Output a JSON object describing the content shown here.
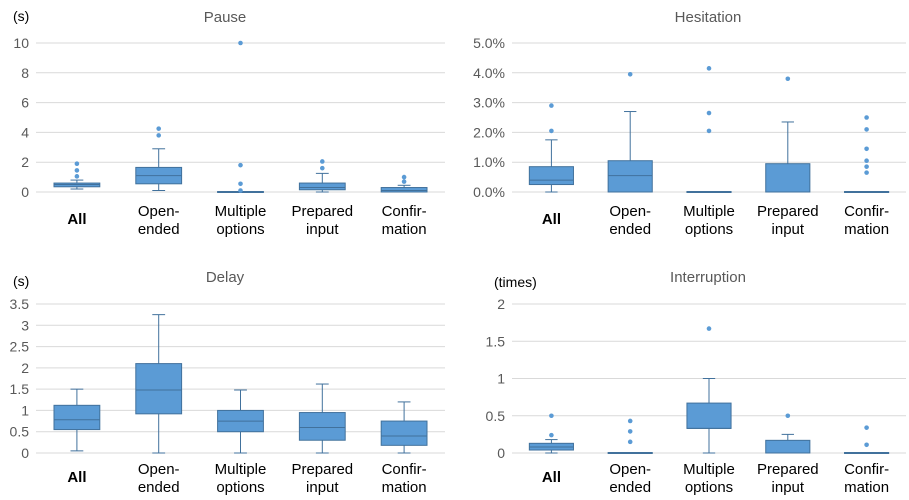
{
  "chart_data": [
    {
      "type": "box",
      "title": "Pause",
      "unit_label": "(s)",
      "ylim": [
        0,
        10
      ],
      "ticks": [
        0,
        2,
        4,
        6,
        8,
        10
      ],
      "tick_labels": [
        "0",
        "2",
        "4",
        "6",
        "8",
        "10"
      ],
      "grid": true,
      "categories": [
        {
          "lines": [
            "All"
          ],
          "bold": true
        },
        {
          "lines": [
            "Open-",
            "ended"
          ]
        },
        {
          "lines": [
            "Multiple",
            "options"
          ]
        },
        {
          "lines": [
            "Prepared",
            "input"
          ]
        },
        {
          "lines": [
            "Confir-",
            "mation"
          ]
        }
      ],
      "boxes": [
        {
          "min": 0.2,
          "q1": 0.35,
          "median": 0.5,
          "q3": 0.6,
          "max": 0.8,
          "outliers": [
            1.05,
            1.45,
            1.9
          ]
        },
        {
          "min": 0.1,
          "q1": 0.55,
          "median": 1.1,
          "q3": 1.65,
          "max": 2.9,
          "outliers": [
            3.8,
            4.25
          ]
        },
        {
          "min": 0.0,
          "q1": 0.0,
          "median": 0.0,
          "q3": 0.0,
          "max": 0.0,
          "outliers": [
            0.1,
            0.55,
            1.8,
            10.0
          ]
        },
        {
          "min": 0.0,
          "q1": 0.15,
          "median": 0.3,
          "q3": 0.6,
          "max": 1.25,
          "outliers": [
            1.6,
            2.05
          ]
        },
        {
          "min": 0.0,
          "q1": 0.0,
          "median": 0.1,
          "q3": 0.3,
          "max": 0.45,
          "outliers": [
            0.7,
            1.0
          ]
        }
      ]
    },
    {
      "type": "box",
      "title": "Hesitation",
      "unit_label": "",
      "ylim": [
        0,
        5
      ],
      "ticks": [
        0,
        1,
        2,
        3,
        4,
        5
      ],
      "tick_labels": [
        "0.0%",
        "1.0%",
        "2.0%",
        "3.0%",
        "4.0%",
        "5.0%"
      ],
      "grid": true,
      "categories": [
        {
          "lines": [
            "All"
          ],
          "bold": true
        },
        {
          "lines": [
            "Open-",
            "ended"
          ]
        },
        {
          "lines": [
            "Multiple",
            "options"
          ]
        },
        {
          "lines": [
            "Prepared",
            "input"
          ]
        },
        {
          "lines": [
            "Confir-",
            "mation"
          ]
        }
      ],
      "boxes": [
        {
          "min": 0.0,
          "q1": 0.25,
          "median": 0.4,
          "q3": 0.85,
          "max": 1.75,
          "outliers": [
            2.05,
            2.9
          ]
        },
        {
          "min": 0.0,
          "q1": 0.0,
          "median": 0.55,
          "q3": 1.05,
          "max": 2.7,
          "outliers": [
            3.95
          ]
        },
        {
          "min": 0.0,
          "q1": 0.0,
          "median": 0.0,
          "q3": 0.0,
          "max": 0.0,
          "outliers": [
            2.05,
            2.65,
            4.15
          ]
        },
        {
          "min": 0.0,
          "q1": 0.0,
          "median": 0.0,
          "q3": 0.95,
          "max": 2.35,
          "outliers": [
            3.8
          ]
        },
        {
          "min": 0.0,
          "q1": 0.0,
          "median": 0.0,
          "q3": 0.0,
          "max": 0.0,
          "outliers": [
            0.65,
            0.85,
            1.05,
            1.45,
            2.1,
            2.5
          ]
        }
      ]
    },
    {
      "type": "box",
      "title": "Delay",
      "unit_label": "(s)",
      "ylim": [
        0,
        3.5
      ],
      "ticks": [
        0,
        0.5,
        1,
        1.5,
        2,
        2.5,
        3,
        3.5
      ],
      "tick_labels": [
        "0",
        "0.5",
        "1",
        "1.5",
        "2",
        "2.5",
        "3",
        "3.5"
      ],
      "grid": true,
      "categories": [
        {
          "lines": [
            "All"
          ],
          "bold": true
        },
        {
          "lines": [
            "Open-",
            "ended"
          ]
        },
        {
          "lines": [
            "Multiple",
            "options"
          ]
        },
        {
          "lines": [
            "Prepared",
            "input"
          ]
        },
        {
          "lines": [
            "Confir-",
            "mation"
          ]
        }
      ],
      "boxes": [
        {
          "min": 0.05,
          "q1": 0.55,
          "median": 0.78,
          "q3": 1.12,
          "max": 1.5,
          "outliers": []
        },
        {
          "min": 0.0,
          "q1": 0.92,
          "median": 1.48,
          "q3": 2.1,
          "max": 3.25,
          "outliers": []
        },
        {
          "min": 0.0,
          "q1": 0.5,
          "median": 0.75,
          "q3": 1.0,
          "max": 1.48,
          "outliers": []
        },
        {
          "min": 0.0,
          "q1": 0.3,
          "median": 0.6,
          "q3": 0.95,
          "max": 1.62,
          "outliers": []
        },
        {
          "min": 0.0,
          "q1": 0.18,
          "median": 0.4,
          "q3": 0.75,
          "max": 1.2,
          "outliers": []
        }
      ]
    },
    {
      "type": "box",
      "title": "Interruption",
      "unit_label": "(times)",
      "ylim": [
        0,
        2
      ],
      "ticks": [
        0,
        0.5,
        1,
        1.5,
        2
      ],
      "tick_labels": [
        "0",
        "0.5",
        "1",
        "1.5",
        "2"
      ],
      "grid": true,
      "categories": [
        {
          "lines": [
            "All"
          ],
          "bold": true
        },
        {
          "lines": [
            "Open-",
            "ended"
          ]
        },
        {
          "lines": [
            "Multiple",
            "options"
          ]
        },
        {
          "lines": [
            "Prepared",
            "input"
          ]
        },
        {
          "lines": [
            "Confir-",
            "mation"
          ]
        }
      ],
      "boxes": [
        {
          "min": 0.0,
          "q1": 0.04,
          "median": 0.08,
          "q3": 0.13,
          "max": 0.18,
          "outliers": [
            0.24,
            0.5
          ]
        },
        {
          "min": 0.0,
          "q1": 0.0,
          "median": 0.0,
          "q3": 0.0,
          "max": 0.0,
          "outliers": [
            0.15,
            0.29,
            0.43
          ]
        },
        {
          "min": 0.0,
          "q1": 0.33,
          "median": 0.33,
          "q3": 0.67,
          "max": 1.0,
          "outliers": [
            1.67
          ]
        },
        {
          "min": 0.0,
          "q1": 0.0,
          "median": 0.0,
          "q3": 0.17,
          "max": 0.25,
          "outliers": [
            0.5
          ]
        },
        {
          "min": 0.0,
          "q1": 0.0,
          "median": 0.0,
          "q3": 0.0,
          "max": 0.0,
          "outliers": [
            0.11,
            0.34
          ]
        }
      ]
    }
  ],
  "colors": {
    "box_fill": "#5b9bd5",
    "box_stroke": "#41719c",
    "whisker": "#41719c",
    "outlier": "#5b9bd5",
    "grid": "#d9d9d9",
    "tick_text": "#595959",
    "title_text": "#595959",
    "category_text": "#000000"
  }
}
